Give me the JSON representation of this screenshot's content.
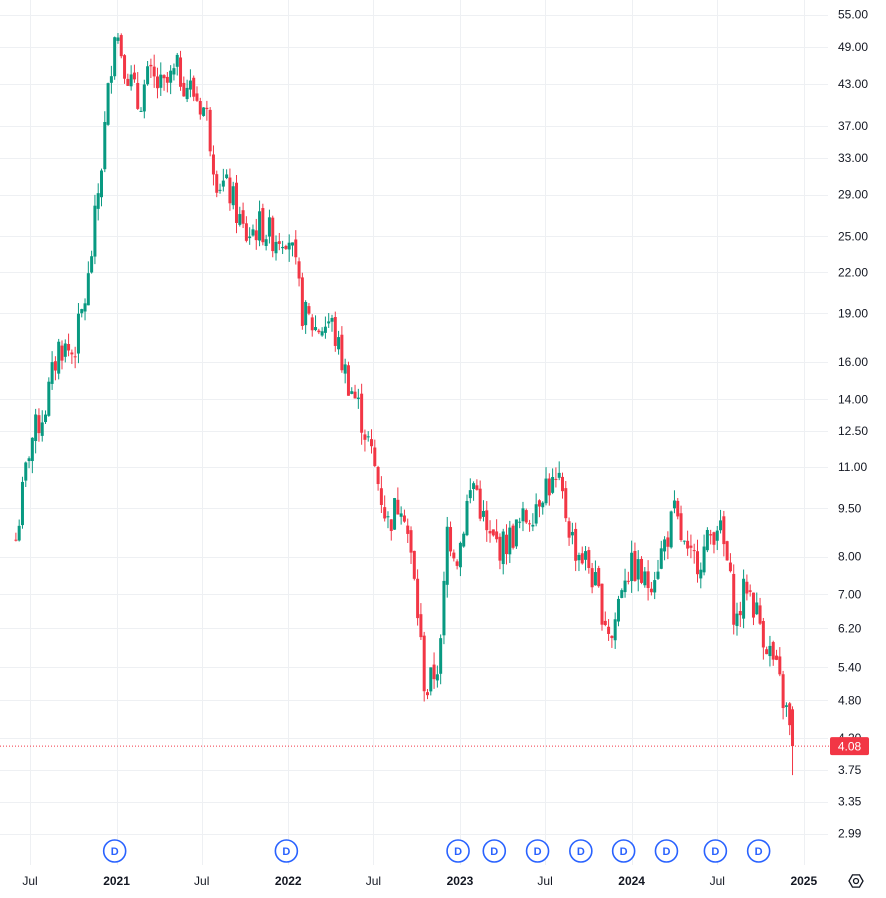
{
  "chart_data": {
    "type": "candlestick",
    "y_scale": "log",
    "ylim": [
      2.85,
      56.5
    ],
    "y_ticks": [
      "55.00",
      "49.00",
      "43.00",
      "37.00",
      "33.00",
      "29.00",
      "25.00",
      "22.00",
      "19.00",
      "16.00",
      "14.00",
      "12.50",
      "11.00",
      "9.50",
      "8.00",
      "7.00",
      "6.20",
      "5.40",
      "4.80",
      "4.20",
      "3.75",
      "3.35",
      "2.99"
    ],
    "x_ticks": [
      {
        "label": "Jul",
        "date": "2020-07-01",
        "bold": false
      },
      {
        "label": "2021",
        "date": "2021-01-01",
        "bold": true
      },
      {
        "label": "Jul",
        "date": "2021-07-01",
        "bold": false
      },
      {
        "label": "2022",
        "date": "2022-01-01",
        "bold": true
      },
      {
        "label": "Jul",
        "date": "2022-07-01",
        "bold": false
      },
      {
        "label": "2023",
        "date": "2023-01-01",
        "bold": true
      },
      {
        "label": "Jul",
        "date": "2023-07-01",
        "bold": false
      },
      {
        "label": "2024",
        "date": "2024-01-01",
        "bold": true
      },
      {
        "label": "Jul",
        "date": "2024-07-01",
        "bold": false
      },
      {
        "label": "2025",
        "date": "2025-01-01",
        "bold": true
      }
    ],
    "dividend_markers": [
      {
        "label": "D",
        "date": "2020-12-28"
      },
      {
        "label": "D",
        "date": "2021-12-28"
      },
      {
        "label": "D",
        "date": "2022-12-28"
      },
      {
        "label": "D",
        "date": "2023-03-15"
      },
      {
        "label": "D",
        "date": "2023-06-15"
      },
      {
        "label": "D",
        "date": "2023-09-15"
      },
      {
        "label": "D",
        "date": "2023-12-15"
      },
      {
        "label": "D",
        "date": "2024-03-15"
      },
      {
        "label": "D",
        "date": "2024-06-27"
      },
      {
        "label": "D",
        "date": "2024-09-27"
      }
    ],
    "last_price": {
      "value": 4.08,
      "label": "4.08"
    },
    "colors": {
      "up": "#089981",
      "down": "#f23645",
      "dividend": "#2962ff",
      "price_line": "#f23645"
    },
    "trend_points": [
      [
        "2020-06-01",
        8.5
      ],
      [
        "2020-07-01",
        12.0
      ],
      [
        "2020-08-01",
        13.5
      ],
      [
        "2020-09-01",
        17.0
      ],
      [
        "2020-10-01",
        16.5
      ],
      [
        "2020-11-01",
        21.0
      ],
      [
        "2020-12-01",
        33.0
      ],
      [
        "2020-12-28",
        53.0
      ],
      [
        "2021-01-20",
        46.0
      ],
      [
        "2021-02-15",
        40.0
      ],
      [
        "2021-03-10",
        44.0
      ],
      [
        "2021-04-10",
        42.0
      ],
      [
        "2021-05-10",
        45.0
      ],
      [
        "2021-06-10",
        42.0
      ],
      [
        "2021-07-10",
        39.0
      ],
      [
        "2021-08-01",
        31.0
      ],
      [
        "2021-09-01",
        29.0
      ],
      [
        "2021-10-01",
        25.0
      ],
      [
        "2021-11-01",
        26.0
      ],
      [
        "2021-12-01",
        25.0
      ],
      [
        "2022-01-01",
        25.5
      ],
      [
        "2022-02-01",
        19.0
      ],
      [
        "2022-03-01",
        18.0
      ],
      [
        "2022-04-01",
        18.5
      ],
      [
        "2022-05-01",
        15.5
      ],
      [
        "2022-06-01",
        13.5
      ],
      [
        "2022-06-20",
        12.0
      ],
      [
        "2022-07-10",
        10.5
      ],
      [
        "2022-08-01",
        9.0
      ],
      [
        "2022-09-01",
        10.0
      ],
      [
        "2022-10-01",
        6.8
      ],
      [
        "2022-10-20",
        4.9
      ],
      [
        "2022-11-20",
        5.6
      ],
      [
        "2022-12-05",
        8.8
      ],
      [
        "2022-12-28",
        8.0
      ],
      [
        "2023-01-15",
        9.6
      ],
      [
        "2023-02-01",
        10.5
      ],
      [
        "2023-03-01",
        8.5
      ],
      [
        "2023-04-01",
        8.3
      ],
      [
        "2023-05-01",
        8.8
      ],
      [
        "2023-06-01",
        9.4
      ],
      [
        "2023-07-01",
        10.4
      ],
      [
        "2023-08-01",
        10.2
      ],
      [
        "2023-09-01",
        8.3
      ],
      [
        "2023-10-01",
        7.8
      ],
      [
        "2023-11-01",
        6.6
      ],
      [
        "2023-11-20",
        6.0
      ],
      [
        "2023-12-15",
        7.6
      ],
      [
        "2024-01-10",
        7.7
      ],
      [
        "2024-02-01",
        7.2
      ],
      [
        "2024-03-01",
        8.0
      ],
      [
        "2024-04-01",
        9.3
      ],
      [
        "2024-05-01",
        7.8
      ],
      [
        "2024-06-01",
        8.1
      ],
      [
        "2024-07-01",
        9.1
      ],
      [
        "2024-07-20",
        8.0
      ],
      [
        "2024-08-10",
        6.3
      ],
      [
        "2024-09-01",
        7.3
      ],
      [
        "2024-10-01",
        6.3
      ],
      [
        "2024-11-01",
        5.4
      ],
      [
        "2024-11-25",
        4.6
      ],
      [
        "2024-12-08",
        4.08
      ]
    ]
  }
}
